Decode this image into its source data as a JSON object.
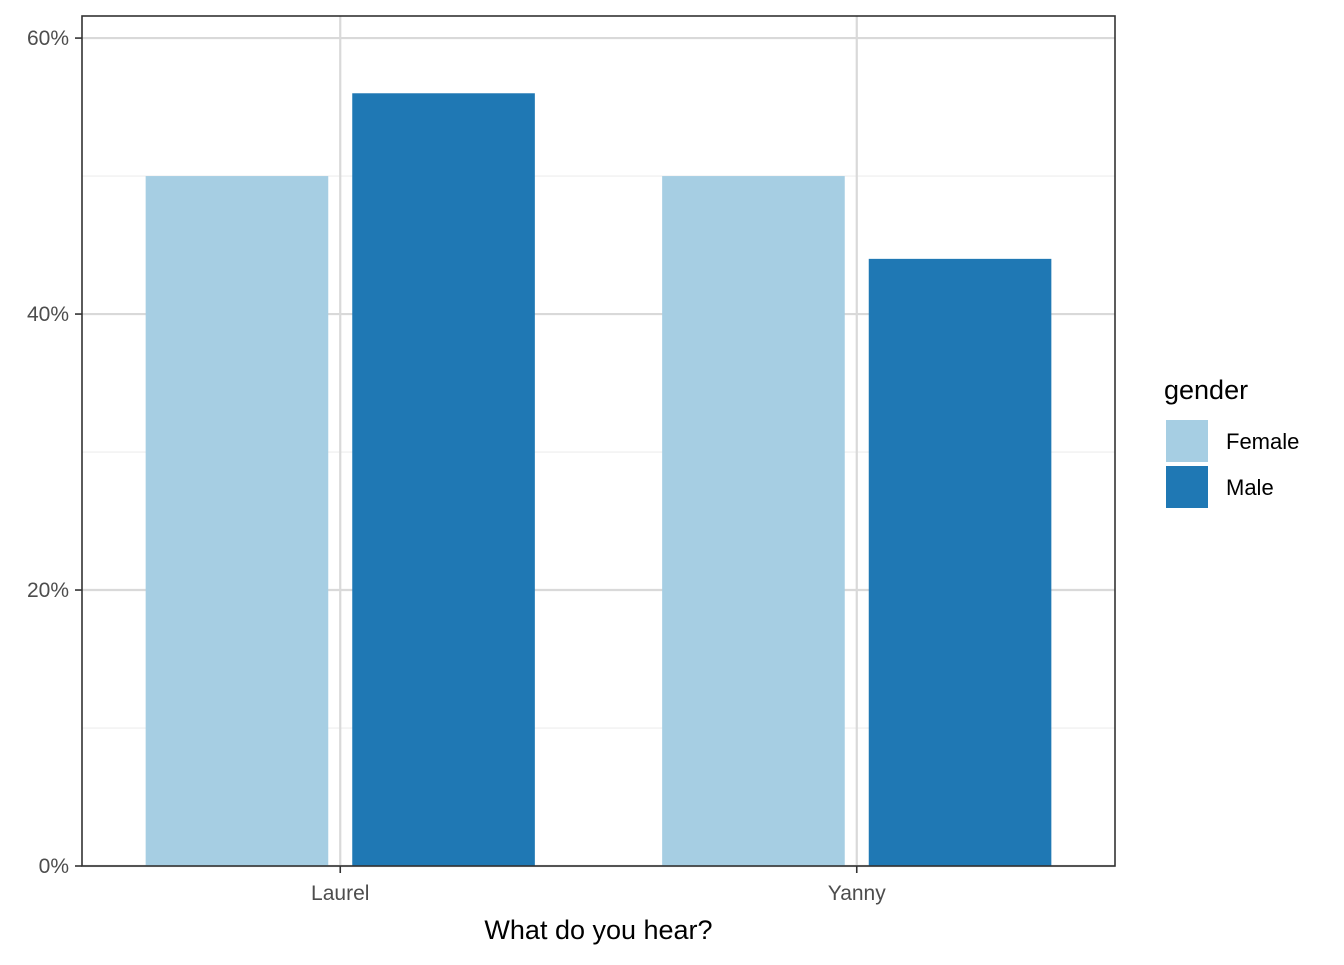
{
  "chart_data": {
    "type": "bar",
    "title": "",
    "xlabel": "What do you hear?",
    "ylabel": "",
    "categories": [
      "Laurel",
      "Yanny"
    ],
    "series": [
      {
        "name": "Female",
        "values": [
          50,
          50
        ],
        "color": "#a6cee3"
      },
      {
        "name": "Male",
        "values": [
          56,
          44
        ],
        "color": "#1f78b4"
      }
    ],
    "ylim": [
      0,
      61.6
    ],
    "y_ticks": [
      0,
      20,
      40,
      60
    ],
    "y_tick_labels": [
      "0%",
      "20%",
      "40%",
      "60%"
    ],
    "y_minor_ticks": [
      10,
      30,
      50
    ],
    "grid": true,
    "legend": {
      "title": "gender",
      "placement": "right"
    },
    "colors": {
      "grid_major": "#d9d9d9",
      "grid_minor": "#ededed",
      "panel_border": "#333333",
      "tick_text": "#4d4d4d"
    }
  }
}
